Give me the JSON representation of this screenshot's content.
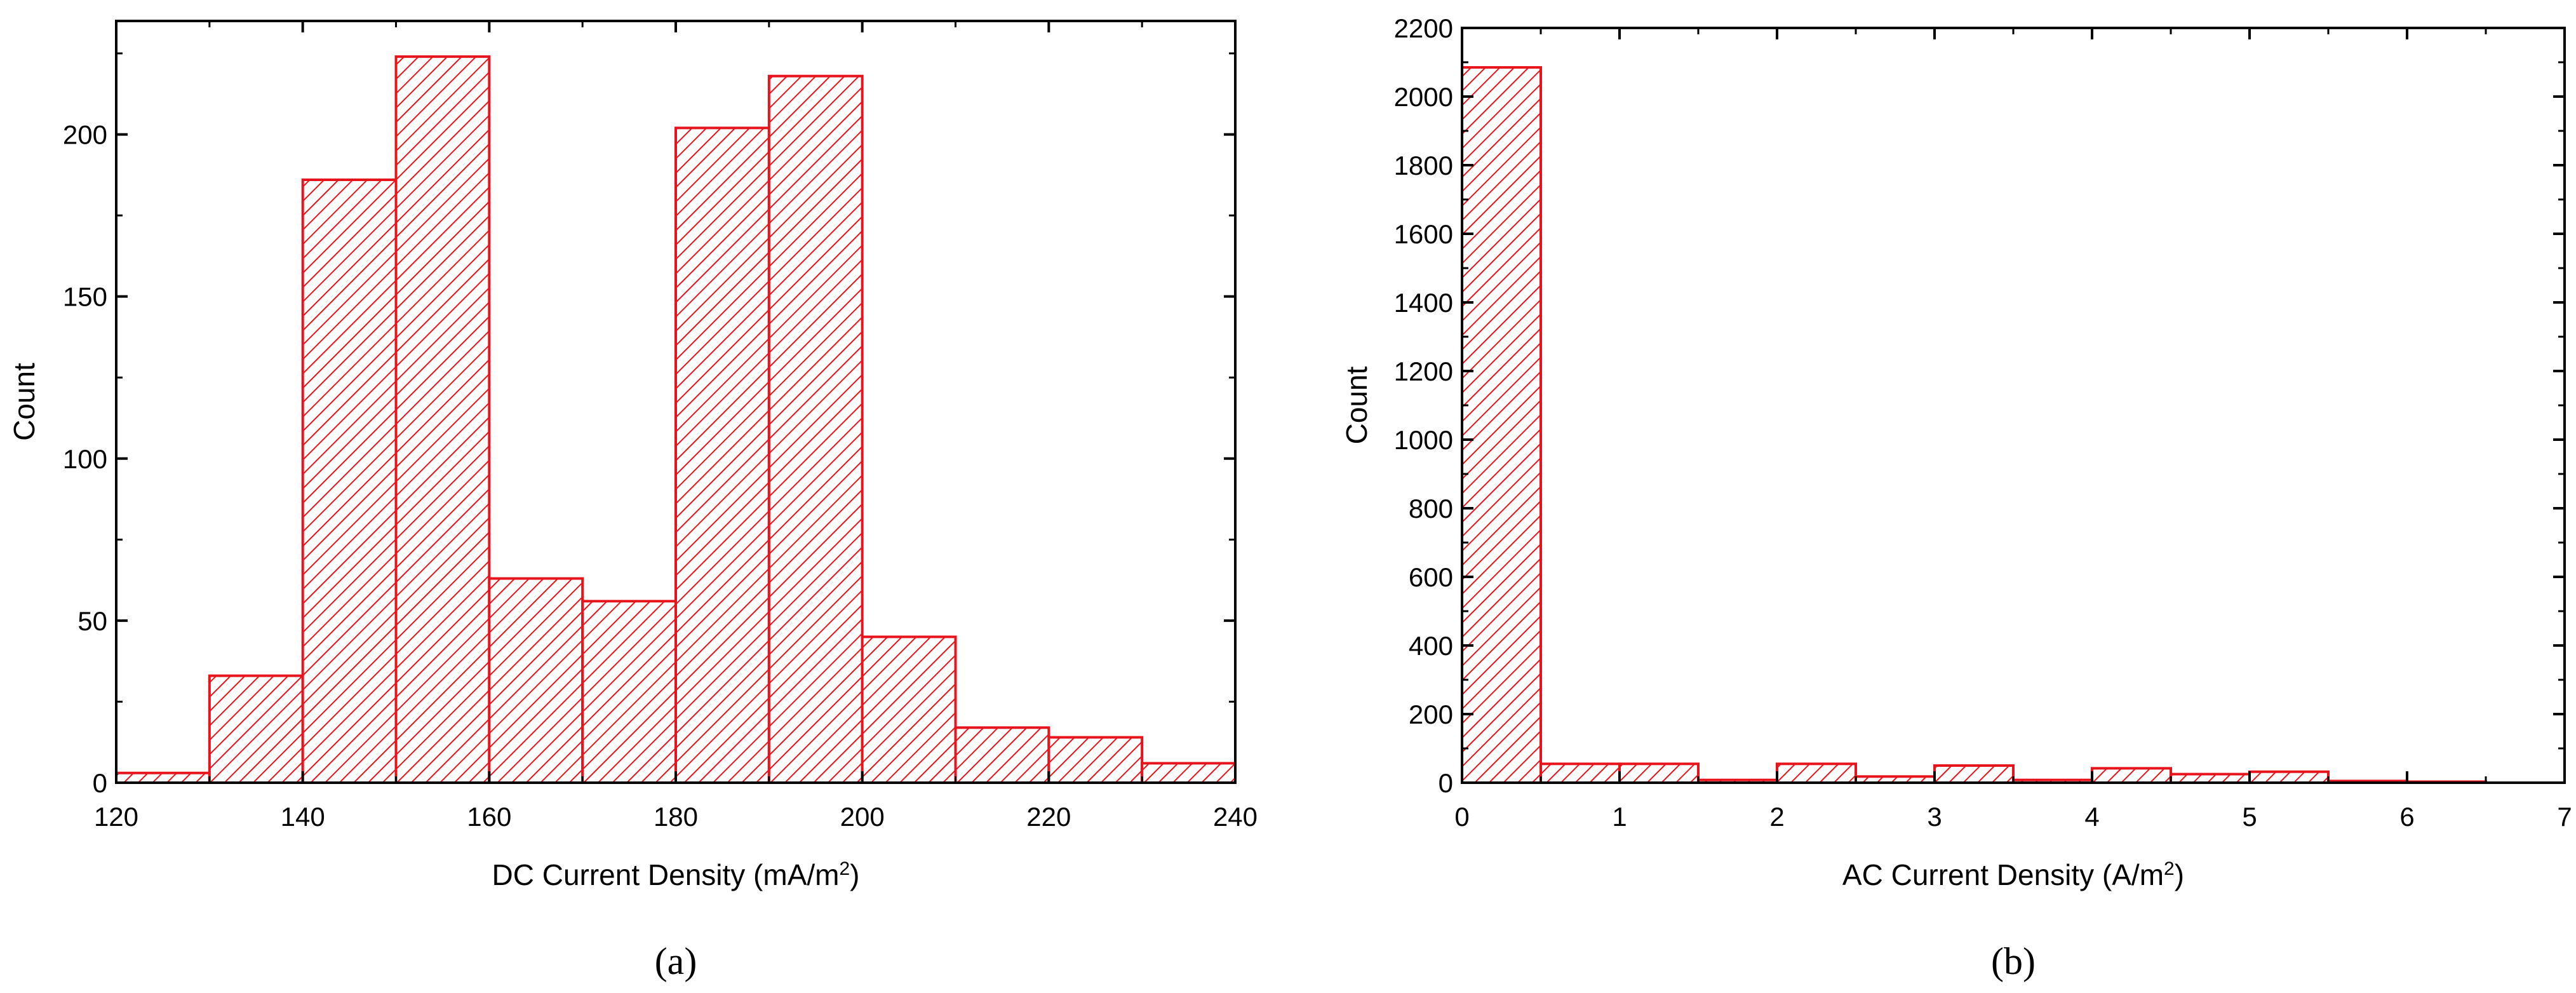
{
  "colors": {
    "bar_stroke": "#e8141c",
    "bar_hatch": "#e8141c",
    "axes": "#000000",
    "background": "#ffffff"
  },
  "chart_data": [
    {
      "type": "bar",
      "panel_label": "(a)",
      "xlabel": "DC Current Density (mA/m",
      "xlabel_sup": "2",
      "xlabel_close": ")",
      "ylabel": "Count",
      "xlim": [
        120,
        240
      ],
      "ylim": [
        0,
        235
      ],
      "x_ticks": [
        120,
        140,
        160,
        180,
        200,
        220,
        240
      ],
      "y_ticks": [
        0,
        50,
        100,
        150,
        200
      ],
      "bins": [
        {
          "x0": 120,
          "x1": 130,
          "count": 3
        },
        {
          "x0": 130,
          "x1": 140,
          "count": 33
        },
        {
          "x0": 140,
          "x1": 150,
          "count": 186
        },
        {
          "x0": 150,
          "x1": 160,
          "count": 224
        },
        {
          "x0": 160,
          "x1": 170,
          "count": 63
        },
        {
          "x0": 170,
          "x1": 180,
          "count": 56
        },
        {
          "x0": 180,
          "x1": 190,
          "count": 202
        },
        {
          "x0": 190,
          "x1": 200,
          "count": 218
        },
        {
          "x0": 200,
          "x1": 210,
          "count": 45
        },
        {
          "x0": 210,
          "x1": 220,
          "count": 17
        },
        {
          "x0": 220,
          "x1": 230,
          "count": 14
        },
        {
          "x0": 230,
          "x1": 240,
          "count": 6
        }
      ],
      "grid": false,
      "legend": "none"
    },
    {
      "type": "bar",
      "panel_label": "(b)",
      "xlabel": "AC Current Density (A/m",
      "xlabel_sup": "2",
      "xlabel_close": ")",
      "ylabel": "Count",
      "xlim": [
        0,
        7
      ],
      "ylim": [
        0,
        2200
      ],
      "x_ticks": [
        0,
        1,
        2,
        3,
        4,
        5,
        6,
        7
      ],
      "y_ticks": [
        0,
        200,
        400,
        600,
        800,
        1000,
        1200,
        1400,
        1600,
        1800,
        2000,
        2200
      ],
      "bins": [
        {
          "x0": 0.0,
          "x1": 0.5,
          "count": 2085
        },
        {
          "x0": 0.5,
          "x1": 1.0,
          "count": 55
        },
        {
          "x0": 1.0,
          "x1": 1.5,
          "count": 55
        },
        {
          "x0": 1.5,
          "x1": 2.0,
          "count": 8
        },
        {
          "x0": 2.0,
          "x1": 2.5,
          "count": 55
        },
        {
          "x0": 2.5,
          "x1": 3.0,
          "count": 18
        },
        {
          "x0": 3.0,
          "x1": 3.5,
          "count": 50
        },
        {
          "x0": 3.5,
          "x1": 4.0,
          "count": 8
        },
        {
          "x0": 4.0,
          "x1": 4.5,
          "count": 42
        },
        {
          "x0": 4.5,
          "x1": 5.0,
          "count": 25
        },
        {
          "x0": 5.0,
          "x1": 5.5,
          "count": 32
        },
        {
          "x0": 5.5,
          "x1": 6.0,
          "count": 5
        },
        {
          "x0": 6.0,
          "x1": 6.5,
          "count": 3
        }
      ],
      "grid": false,
      "legend": "none"
    }
  ]
}
